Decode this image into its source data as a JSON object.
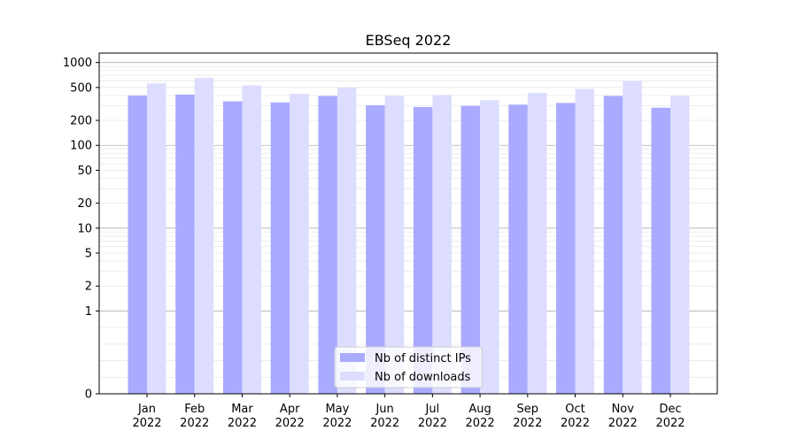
{
  "chart_data": {
    "type": "bar",
    "title": "EBSeq 2022",
    "xlabel": "",
    "ylabel": "",
    "scale": "symlog",
    "categories": [
      "Jan\n2022",
      "Feb\n2022",
      "Mar\n2022",
      "Apr\n2022",
      "May\n2022",
      "Jun\n2022",
      "Jul\n2022",
      "Aug\n2022",
      "Sep\n2022",
      "Oct\n2022",
      "Nov\n2022",
      "Dec\n2022"
    ],
    "series": [
      {
        "name": "Nb of distinct IPs",
        "color": "#aaaaff",
        "values": [
          400,
          410,
          340,
          330,
          395,
          305,
          290,
          300,
          310,
          325,
          395,
          285
        ]
      },
      {
        "name": "Nb of downloads",
        "color": "#ddddff",
        "values": [
          560,
          650,
          530,
          420,
          500,
          395,
          405,
          350,
          430,
          480,
          600,
          395
        ]
      }
    ],
    "y_ticks": [
      {
        "value": 0,
        "label": "0"
      },
      {
        "value": 1,
        "label": "1"
      },
      {
        "value": 2,
        "label": "2"
      },
      {
        "value": 5,
        "label": "5"
      },
      {
        "value": 10,
        "label": "10"
      },
      {
        "value": 20,
        "label": "20"
      },
      {
        "value": 50,
        "label": "50"
      },
      {
        "value": 100,
        "label": "100"
      },
      {
        "value": 200,
        "label": "200"
      },
      {
        "value": 500,
        "label": "500"
      },
      {
        "value": 1000,
        "label": "1000"
      }
    ],
    "ylim": [
      0,
      1300
    ],
    "grid": true,
    "legend_position": "bottom-center"
  }
}
